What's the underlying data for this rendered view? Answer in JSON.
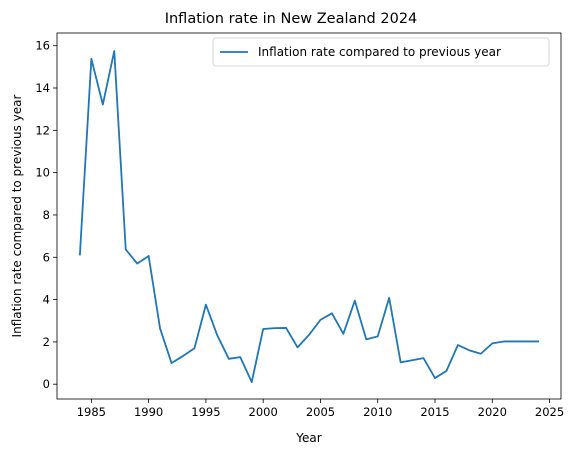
{
  "chart_data": {
    "type": "line",
    "title": "Inflation rate in New Zealand 2024",
    "xlabel": "Year",
    "ylabel": "Inflation rate compared to previous year",
    "xlim": [
      1982,
      2026
    ],
    "ylim": [
      -0.7,
      16.6
    ],
    "xticks": [
      1985,
      1990,
      1995,
      2000,
      2005,
      2010,
      2015,
      2020,
      2025
    ],
    "yticks": [
      0,
      2,
      4,
      6,
      8,
      10,
      12,
      14,
      16
    ],
    "grid": false,
    "legend_position": "top-right",
    "series": [
      {
        "name": "Inflation rate compared to previous year",
        "color": "#1f77b4",
        "x": [
          1984,
          1985,
          1986,
          1987,
          1988,
          1989,
          1990,
          1991,
          1992,
          1993,
          1994,
          1995,
          1996,
          1997,
          1998,
          1999,
          2000,
          2001,
          2002,
          2003,
          2004,
          2005,
          2006,
          2007,
          2008,
          2009,
          2010,
          2011,
          2012,
          2013,
          2014,
          2015,
          2016,
          2017,
          2018,
          2019,
          2020,
          2021,
          2022,
          2023,
          2024
        ],
        "y": [
          6.13,
          15.38,
          13.22,
          15.75,
          6.37,
          5.7,
          6.06,
          2.63,
          1.0,
          1.33,
          1.7,
          3.76,
          2.3,
          1.2,
          1.28,
          0.1,
          2.61,
          2.65,
          2.66,
          1.74,
          2.33,
          3.04,
          3.35,
          2.38,
          3.95,
          2.12,
          2.26,
          4.08,
          1.03,
          1.13,
          1.23,
          0.29,
          0.63,
          1.85,
          1.6,
          1.44,
          1.93,
          2.02,
          2.02,
          2.02,
          2.02
        ]
      }
    ]
  }
}
